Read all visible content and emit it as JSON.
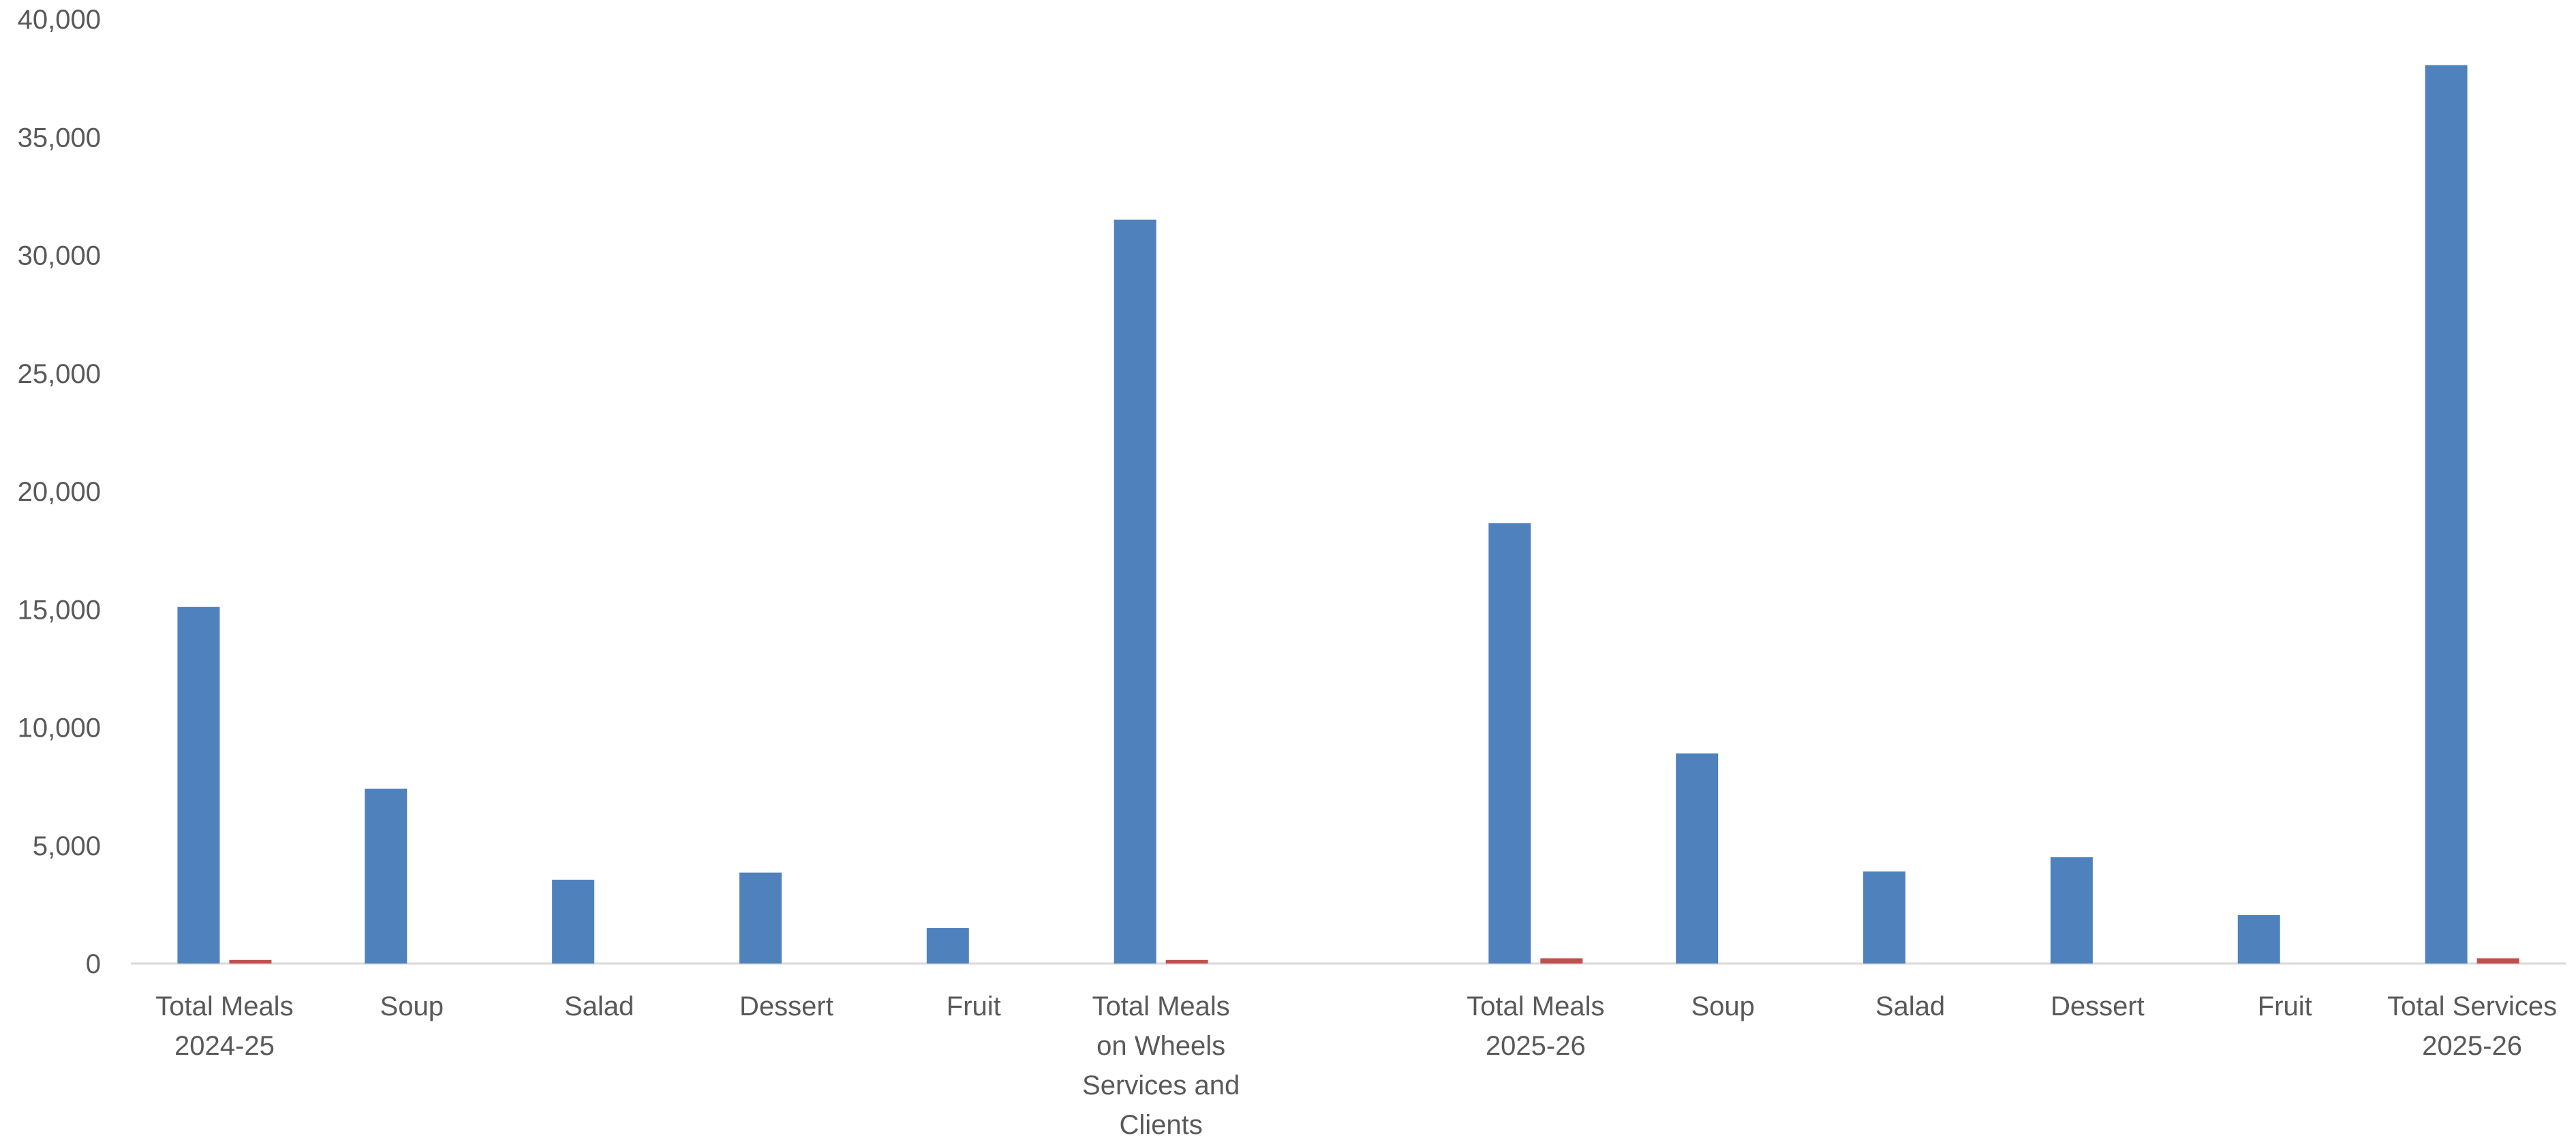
{
  "chart_data": {
    "type": "bar",
    "title": "",
    "xlabel": "",
    "ylabel": "",
    "ylim": [
      0,
      40000
    ],
    "yticks": [
      "0",
      "5,000",
      "10,000",
      "15,000",
      "20,000",
      "25,000",
      "30,000",
      "35,000",
      "40,000"
    ],
    "grid": false,
    "legend": "none",
    "categories": [
      [
        "Total Meals",
        "2024-25"
      ],
      [
        "Soup"
      ],
      [
        "Salad"
      ],
      [
        "Dessert"
      ],
      [
        "Fruit"
      ],
      [
        "Total Meals",
        "on Wheels",
        "Services and",
        "Clients"
      ],
      [],
      [
        "Total Meals",
        "2025-26"
      ],
      [
        "Soup"
      ],
      [
        "Salad"
      ],
      [
        "Dessert"
      ],
      [
        "Fruit"
      ],
      [
        "Total Services",
        "2025-26"
      ]
    ],
    "series": [
      {
        "color": "#4f81bd",
        "values": [
          15100,
          7400,
          3550,
          3850,
          1500,
          31500,
          null,
          18650,
          8900,
          3900,
          4500,
          2050,
          38050
        ]
      },
      {
        "color": "#c0504d",
        "values": [
          150,
          0,
          0,
          0,
          0,
          150,
          null,
          220,
          0,
          0,
          0,
          0,
          220
        ]
      }
    ]
  }
}
